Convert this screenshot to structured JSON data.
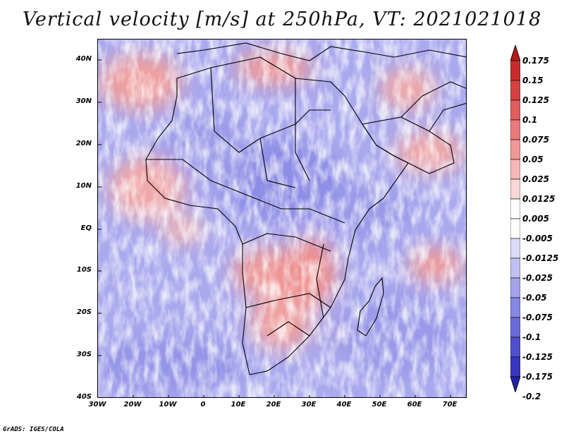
{
  "title": "Vertical velocity [m/s] at 250hPa, VT: 2021021018",
  "lat_labels": [
    "40N",
    "30N",
    "20N",
    "10N",
    "EQ",
    "10S",
    "20S",
    "30S",
    "40S"
  ],
  "lon_labels": [
    "30W",
    "20W",
    "10W",
    "0",
    "10E",
    "20E",
    "30E",
    "40E",
    "50E",
    "60E",
    "70E"
  ],
  "colorbar_labels": [
    "0.175",
    "0.15",
    "0.125",
    "0.1",
    "0.075",
    "0.05",
    "0.025",
    "0.0125",
    "0.005",
    "-0.005",
    "-0.0125",
    "-0.025",
    "-0.05",
    "-0.075",
    "-0.1",
    "-0.125",
    "-0.175",
    "-0.2"
  ],
  "colors": {
    "levels_top_to_bottom": [
      "#b31919",
      "#cc2a2a",
      "#d84141",
      "#e25d5d",
      "#ea7a7a",
      "#f19898",
      "#f6b7b7",
      "#fad6d6",
      "#ffffff",
      "#ffffff",
      "#dcdcf8",
      "#c0c0f2",
      "#a3a3ec",
      "#8686e4",
      "#6a6adb",
      "#4f4fcf",
      "#3636c0",
      "#2222aa"
    ],
    "background": "#ffffff",
    "coastline": "#000000"
  },
  "credit": "GrADS: IGES/COLA"
}
